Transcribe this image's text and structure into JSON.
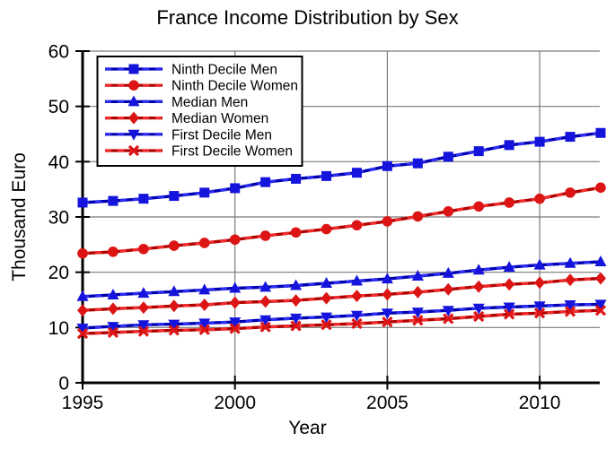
{
  "chart_data": {
    "type": "line",
    "title": "France Income Distribution by Sex",
    "xlabel": "Year",
    "ylabel": "Thousand Euro",
    "x_range": [
      1995,
      2012
    ],
    "y_range": [
      0,
      60
    ],
    "x_ticks": [
      1995,
      2000,
      2005,
      2010
    ],
    "y_ticks": [
      0,
      10,
      20,
      30,
      40,
      50,
      60
    ],
    "grid": true,
    "legend_position": "top-left",
    "years": [
      1995,
      1996,
      1997,
      1998,
      1999,
      2000,
      2001,
      2002,
      2003,
      2004,
      2005,
      2006,
      2007,
      2008,
      2009,
      2010,
      2011,
      2012
    ],
    "series": [
      {
        "name": "Ninth Decile Men",
        "marker": "square",
        "line_color": "#0000B0",
        "dash_color": "#2D2DF0",
        "marker_color": "#1414DC",
        "values": [
          32.6,
          32.9,
          33.3,
          33.8,
          34.4,
          35.2,
          36.3,
          36.9,
          37.4,
          38.0,
          39.2,
          39.7,
          40.9,
          41.9,
          43.0,
          43.6,
          44.5,
          45.2
        ]
      },
      {
        "name": "Ninth Decile Women",
        "marker": "circle",
        "line_color": "#B00000",
        "dash_color": "#F02D2D",
        "marker_color": "#DC1414",
        "values": [
          23.4,
          23.7,
          24.2,
          24.8,
          25.3,
          25.9,
          26.6,
          27.2,
          27.8,
          28.5,
          29.2,
          30.1,
          31.0,
          31.9,
          32.6,
          33.3,
          34.4,
          35.3
        ]
      },
      {
        "name": "Median Men",
        "marker": "triangle-up",
        "line_color": "#0000B0",
        "dash_color": "#2D2DF0",
        "marker_color": "#1414DC",
        "values": [
          15.6,
          15.9,
          16.2,
          16.5,
          16.8,
          17.1,
          17.3,
          17.6,
          18.0,
          18.4,
          18.8,
          19.3,
          19.8,
          20.4,
          20.9,
          21.3,
          21.6,
          21.9
        ]
      },
      {
        "name": "Median Women",
        "marker": "diamond",
        "line_color": "#B00000",
        "dash_color": "#F02D2D",
        "marker_color": "#DC1414",
        "values": [
          13.1,
          13.4,
          13.6,
          13.9,
          14.1,
          14.5,
          14.7,
          14.9,
          15.3,
          15.7,
          16.0,
          16.4,
          16.9,
          17.4,
          17.8,
          18.1,
          18.6,
          18.9
        ]
      },
      {
        "name": "First Decile Men",
        "marker": "triangle-down",
        "line_color": "#0000B0",
        "dash_color": "#2D2DF0",
        "marker_color": "#1414DC",
        "values": [
          9.9,
          10.2,
          10.5,
          10.6,
          10.8,
          11.0,
          11.4,
          11.7,
          11.9,
          12.2,
          12.6,
          12.8,
          13.1,
          13.5,
          13.7,
          13.9,
          14.1,
          14.2
        ]
      },
      {
        "name": "First Decile Women",
        "marker": "x",
        "line_color": "#B00000",
        "dash_color": "#F02D2D",
        "marker_color": "#DC1414",
        "values": [
          8.9,
          9.1,
          9.3,
          9.5,
          9.6,
          9.8,
          10.1,
          10.3,
          10.5,
          10.7,
          11.0,
          11.3,
          11.6,
          12.0,
          12.4,
          12.6,
          12.9,
          13.1
        ]
      }
    ],
    "grid_color": "#7A7A7A",
    "axis_color": "#000000"
  }
}
